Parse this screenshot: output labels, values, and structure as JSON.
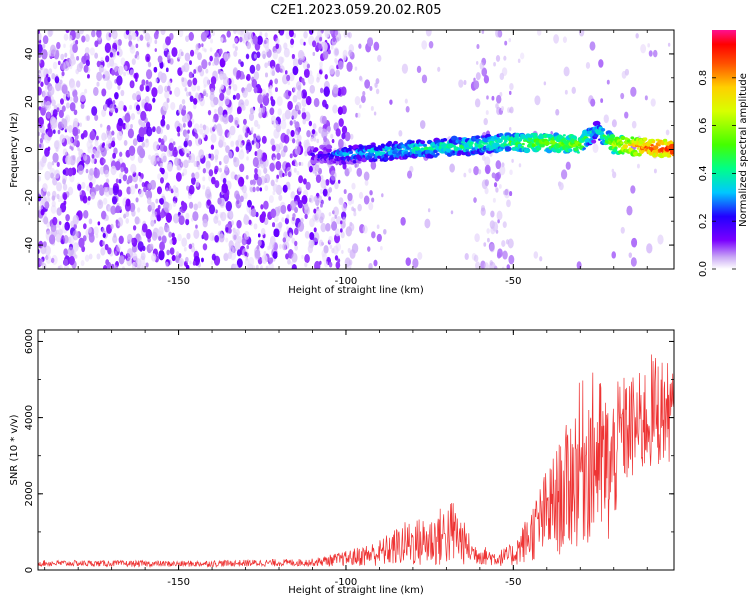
{
  "chart_data": [
    {
      "type": "heatmap",
      "title": "C2E1.2023.059.20.02.R05",
      "xlabel": "Height of straight line (km)",
      "ylabel": "Frequency (Hz)",
      "xlim": [
        -192,
        -2
      ],
      "ylim": [
        -50,
        50
      ],
      "xticks": [
        -150,
        -100,
        -50
      ],
      "yticks": [
        -40,
        -20,
        0,
        20,
        40
      ],
      "colorbar": {
        "label": "Normalized spectral amplitude",
        "range": [
          0,
          1
        ],
        "ticks": [
          "0.0",
          "0.2",
          "0.4",
          "0.6",
          "0.8"
        ]
      },
      "ridge": [
        {
          "x": -110,
          "y": -2,
          "a": 0.18
        },
        {
          "x": -100,
          "y": -2,
          "a": 0.3
        },
        {
          "x": -90,
          "y": -1,
          "a": 0.36
        },
        {
          "x": -80,
          "y": 0,
          "a": 0.38
        },
        {
          "x": -70,
          "y": 1,
          "a": 0.42
        },
        {
          "x": -60,
          "y": 2,
          "a": 0.4
        },
        {
          "x": -50,
          "y": 3,
          "a": 0.48
        },
        {
          "x": -40,
          "y": 3,
          "a": 0.55
        },
        {
          "x": -30,
          "y": 2,
          "a": 0.55
        },
        {
          "x": -25,
          "y": 8,
          "a": 0.35
        },
        {
          "x": -20,
          "y": 2,
          "a": 0.6
        },
        {
          "x": -10,
          "y": 1,
          "a": 0.85
        },
        {
          "x": -2,
          "y": 0,
          "a": 0.9
        }
      ]
    },
    {
      "type": "line",
      "xlabel": "Height of straight line (km)",
      "ylabel": "SNR (10 * v/v)",
      "xlim": [
        -192,
        -2
      ],
      "ylim": [
        0,
        6300
      ],
      "xticks": [
        -150,
        -100,
        -50
      ],
      "yticks": [
        0,
        2000,
        4000,
        6000
      ],
      "series": [
        {
          "color": "#ee3333",
          "envelope": [
            {
              "x": -192,
              "mean": 180,
              "spread": 80
            },
            {
              "x": -150,
              "mean": 160,
              "spread": 80
            },
            {
              "x": -110,
              "mean": 200,
              "spread": 100
            },
            {
              "x": -100,
              "mean": 300,
              "spread": 200
            },
            {
              "x": -90,
              "mean": 450,
              "spread": 350
            },
            {
              "x": -82,
              "mean": 700,
              "spread": 600
            },
            {
              "x": -75,
              "mean": 750,
              "spread": 700
            },
            {
              "x": -68,
              "mean": 1000,
              "spread": 900
            },
            {
              "x": -62,
              "mean": 450,
              "spread": 300
            },
            {
              "x": -55,
              "mean": 300,
              "spread": 200
            },
            {
              "x": -50,
              "mean": 400,
              "spread": 300
            },
            {
              "x": -45,
              "mean": 900,
              "spread": 700
            },
            {
              "x": -40,
              "mean": 1500,
              "spread": 1200
            },
            {
              "x": -35,
              "mean": 2000,
              "spread": 1600
            },
            {
              "x": -30,
              "mean": 2800,
              "spread": 2200
            },
            {
              "x": -25,
              "mean": 3000,
              "spread": 2300
            },
            {
              "x": -21,
              "mean": 2500,
              "spread": 2000
            },
            {
              "x": -18,
              "mean": 3600,
              "spread": 1500
            },
            {
              "x": -12,
              "mean": 3800,
              "spread": 1400
            },
            {
              "x": -8,
              "mean": 4200,
              "spread": 1600
            },
            {
              "x": -2,
              "mean": 4100,
              "spread": 1200
            }
          ]
        }
      ]
    }
  ]
}
